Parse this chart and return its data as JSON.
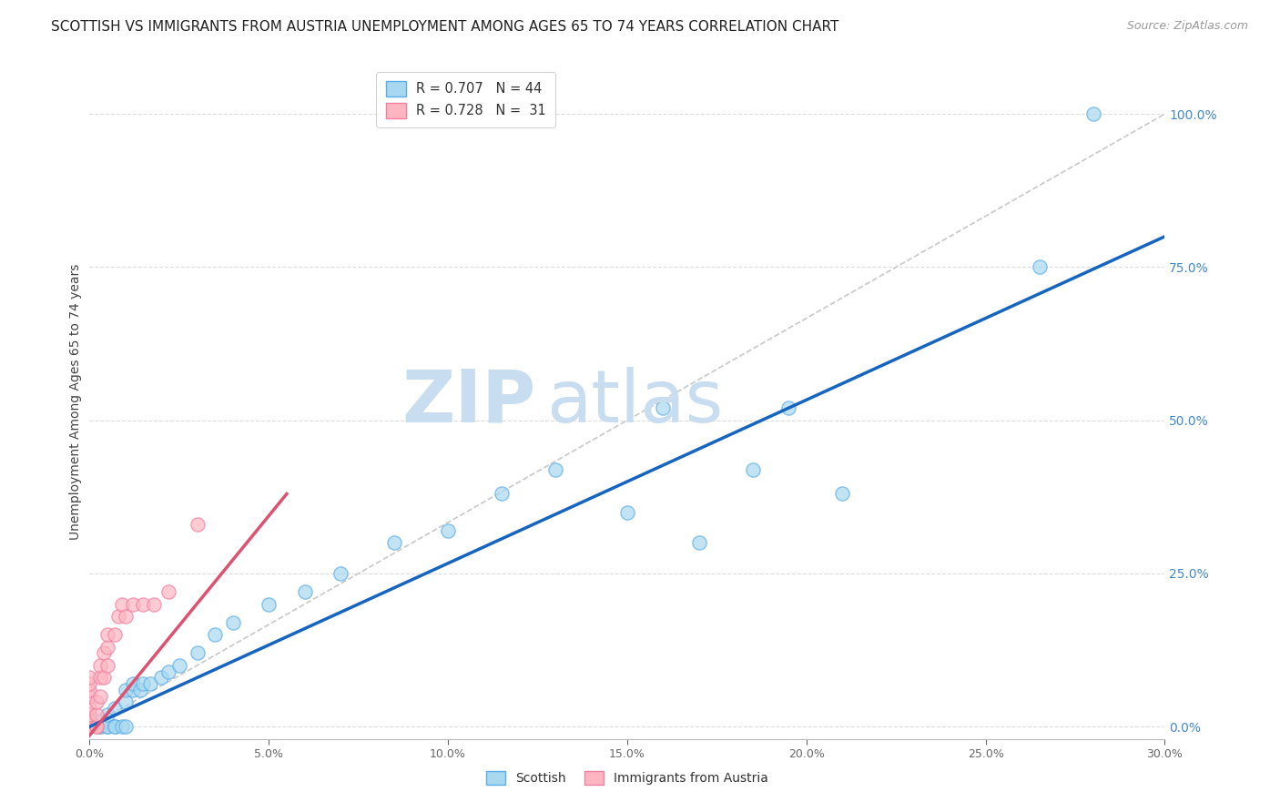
{
  "title": "SCOTTISH VS IMMIGRANTS FROM AUSTRIA UNEMPLOYMENT AMONG AGES 65 TO 74 YEARS CORRELATION CHART",
  "source": "Source: ZipAtlas.com",
  "ylabel": "Unemployment Among Ages 65 to 74 years",
  "xlim": [
    0.0,
    0.3
  ],
  "ylim": [
    -0.02,
    1.08
  ],
  "right_yticks": [
    0.0,
    0.25,
    0.5,
    0.75,
    1.0
  ],
  "right_yticklabels": [
    "0.0%",
    "25.0%",
    "50.0%",
    "75.0%",
    "100.0%"
  ],
  "xtick_values": [
    0.0,
    0.05,
    0.1,
    0.15,
    0.2,
    0.25,
    0.3
  ],
  "xtick_labels": [
    "0.0%",
    "5.0%",
    "10.0%",
    "15.0%",
    "20.0%",
    "25.0%",
    "30.0%"
  ],
  "scottish_scatter": {
    "x": [
      0.0,
      0.0,
      0.0,
      0.0,
      0.0,
      0.003,
      0.003,
      0.003,
      0.005,
      0.005,
      0.005,
      0.007,
      0.007,
      0.007,
      0.009,
      0.01,
      0.01,
      0.01,
      0.012,
      0.012,
      0.014,
      0.015,
      0.017,
      0.02,
      0.022,
      0.025,
      0.03,
      0.035,
      0.04,
      0.05,
      0.06,
      0.07,
      0.085,
      0.1,
      0.115,
      0.13,
      0.15,
      0.16,
      0.17,
      0.185,
      0.195,
      0.21,
      0.265,
      0.28
    ],
    "y": [
      0.0,
      0.0,
      0.0,
      0.01,
      0.02,
      0.0,
      0.0,
      0.01,
      0.0,
      0.0,
      0.02,
      0.0,
      0.0,
      0.03,
      0.0,
      0.0,
      0.04,
      0.06,
      0.06,
      0.07,
      0.06,
      0.07,
      0.07,
      0.08,
      0.09,
      0.1,
      0.12,
      0.15,
      0.17,
      0.2,
      0.22,
      0.25,
      0.3,
      0.32,
      0.38,
      0.42,
      0.35,
      0.52,
      0.3,
      0.42,
      0.52,
      0.38,
      0.75,
      1.0
    ],
    "color": "#A8D8F0",
    "edgecolor": "#5BAEE8",
    "size": 120
  },
  "austria_scatter": {
    "x": [
      0.0,
      0.0,
      0.0,
      0.0,
      0.0,
      0.0,
      0.0,
      0.0,
      0.0,
      0.0,
      0.002,
      0.002,
      0.002,
      0.002,
      0.003,
      0.003,
      0.003,
      0.004,
      0.004,
      0.005,
      0.005,
      0.005,
      0.007,
      0.008,
      0.009,
      0.01,
      0.012,
      0.015,
      0.018,
      0.022,
      0.03
    ],
    "y": [
      0.0,
      0.0,
      0.0,
      0.01,
      0.02,
      0.03,
      0.05,
      0.06,
      0.07,
      0.08,
      0.0,
      0.0,
      0.02,
      0.04,
      0.05,
      0.08,
      0.1,
      0.08,
      0.12,
      0.1,
      0.13,
      0.15,
      0.15,
      0.18,
      0.2,
      0.18,
      0.2,
      0.2,
      0.2,
      0.22,
      0.33
    ],
    "color": "#FFB6C1",
    "edgecolor": "#F080A0",
    "size": 120
  },
  "scottish_regression": {
    "x": [
      0.0,
      0.3
    ],
    "y": [
      0.0,
      0.8
    ],
    "color": "#1565C0",
    "linewidth": 2.5
  },
  "austria_regression": {
    "x": [
      -0.005,
      0.055
    ],
    "y": [
      -0.05,
      0.38
    ],
    "color": "#E05070",
    "linewidth": 2.5
  },
  "diagonal": {
    "x": [
      0.0,
      0.3
    ],
    "y": [
      0.0,
      1.0
    ],
    "color": "#C8C8C8",
    "linewidth": 1.2,
    "linestyle": "--"
  },
  "grid_yticks": [
    0.0,
    0.25,
    0.5,
    0.75,
    1.0
  ],
  "grid_color": "#DDDDDD",
  "background_color": "#FFFFFF",
  "title_fontsize": 11,
  "axis_label_fontsize": 10,
  "tick_fontsize": 9,
  "source_fontsize": 9,
  "watermark_zip": "ZIP",
  "watermark_atlas": "atlas",
  "watermark_color": "#C8DEF0",
  "legend_r_n_blue": "R = 0.707   N = 44",
  "legend_r_n_pink": "R = 0.728   N =  31",
  "legend_bottom_1": "Scottish",
  "legend_bottom_2": "Immigrants from Austria"
}
